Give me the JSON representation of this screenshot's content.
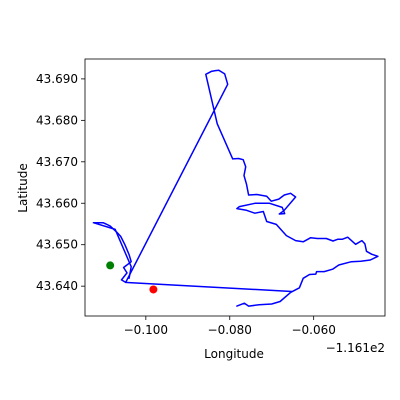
{
  "chart_data": {
    "type": "line",
    "xlabel": "Longitude",
    "ylabel": "Latitude",
    "x_offset_label": "−1.161e2",
    "x_offset": -116.1,
    "xlim": [
      -0.1145,
      -0.043
    ],
    "ylim": [
      43.6328,
      43.6948
    ],
    "x_ticks": [
      -0.1,
      -0.08,
      -0.06
    ],
    "x_tick_labels": [
      "−0.100",
      "−0.080",
      "−0.060"
    ],
    "y_ticks": [
      43.64,
      43.65,
      43.66,
      43.67,
      43.68,
      43.69
    ],
    "y_tick_labels": [
      "43.640",
      "43.650",
      "43.660",
      "43.670",
      "43.680",
      "43.690"
    ],
    "grid": false,
    "series": [
      {
        "kind": "line",
        "color": "#0000ff",
        "points": [
          [
            -0.0652,
            43.6387
          ],
          [
            -0.1048,
            43.6409
          ],
          [
            -0.0805,
            43.6887
          ],
          [
            -0.0812,
            43.6912
          ],
          [
            -0.0826,
            43.6921
          ],
          [
            -0.0834,
            43.692
          ],
          [
            -0.0844,
            43.6918
          ],
          [
            -0.0857,
            43.6911
          ],
          [
            -0.083,
            43.6792
          ],
          [
            -0.0793,
            43.6707
          ],
          [
            -0.0779,
            43.6708
          ],
          [
            -0.0768,
            43.6705
          ],
          [
            -0.0762,
            43.6688
          ],
          [
            -0.0766,
            43.6667
          ],
          [
            -0.076,
            43.6646
          ],
          [
            -0.0755,
            43.662
          ],
          [
            -0.0735,
            43.6621
          ],
          [
            -0.0712,
            43.6617
          ],
          [
            -0.0701,
            43.6605
          ],
          [
            -0.0683,
            43.661
          ],
          [
            -0.067,
            43.662
          ],
          [
            -0.0655,
            43.6624
          ],
          [
            -0.0643,
            43.6615
          ],
          [
            -0.0671,
            43.6582
          ],
          [
            -0.0682,
            43.6574
          ],
          [
            -0.0669,
            43.6575
          ],
          [
            -0.0675,
            43.659
          ],
          [
            -0.0705,
            43.66
          ],
          [
            -0.074,
            43.66
          ],
          [
            -0.0777,
            43.6592
          ],
          [
            -0.0783,
            43.6587
          ],
          [
            -0.076,
            43.6583
          ],
          [
            -0.074,
            43.6576
          ],
          [
            -0.072,
            43.658
          ],
          [
            -0.0712,
            43.6556
          ],
          [
            -0.0689,
            43.6549
          ],
          [
            -0.0665,
            43.6522
          ],
          [
            -0.0643,
            43.651
          ],
          [
            -0.0625,
            43.6507
          ],
          [
            -0.0607,
            43.6517
          ],
          [
            -0.0591,
            43.6515
          ],
          [
            -0.057,
            43.6515
          ],
          [
            -0.0554,
            43.6509
          ],
          [
            -0.0543,
            43.6513
          ],
          [
            -0.0532,
            43.6513
          ],
          [
            -0.0519,
            43.6518
          ],
          [
            -0.05,
            43.6501
          ],
          [
            -0.0485,
            43.651
          ],
          [
            -0.0478,
            43.6502
          ],
          [
            -0.0474,
            43.6484
          ],
          [
            -0.0462,
            43.6477
          ],
          [
            -0.0447,
            43.6472
          ],
          [
            -0.0465,
            43.6463
          ],
          [
            -0.0488,
            43.646
          ],
          [
            -0.051,
            43.6459
          ],
          [
            -0.054,
            43.6451
          ],
          [
            -0.0555,
            43.6441
          ],
          [
            -0.0575,
            43.6435
          ],
          [
            -0.0593,
            43.6435
          ],
          [
            -0.0595,
            43.6429
          ],
          [
            -0.061,
            43.6428
          ],
          [
            -0.0625,
            43.6419
          ],
          [
            -0.0634,
            43.6396
          ],
          [
            -0.0655,
            43.6385
          ],
          [
            -0.068,
            43.6363
          ],
          [
            -0.07,
            43.6357
          ],
          [
            -0.073,
            43.6355
          ],
          [
            -0.0755,
            43.6352
          ],
          [
            -0.0765,
            43.6359
          ],
          [
            -0.0783,
            43.6352
          ]
        ]
      },
      {
        "kind": "line",
        "color": "#0000ff",
        "points": [
          [
            -0.1048,
            43.6409
          ],
          [
            -0.1058,
            43.6415
          ],
          [
            -0.1045,
            43.6432
          ],
          [
            -0.1053,
            43.6445
          ],
          [
            -0.1035,
            43.6459
          ],
          [
            -0.104,
            43.6476
          ],
          [
            -0.105,
            43.65
          ],
          [
            -0.106,
            43.652
          ],
          [
            -0.107,
            43.6531
          ],
          [
            -0.1085,
            43.6545
          ],
          [
            -0.1095,
            43.655
          ],
          [
            -0.1102,
            43.6553
          ],
          [
            -0.1125,
            43.6553
          ],
          [
            -0.1073,
            43.6537
          ],
          [
            -0.1035,
            43.6447
          ],
          [
            -0.104,
            43.6419
          ]
        ]
      },
      {
        "kind": "point",
        "color": "#008000",
        "points": [
          [
            -0.1085,
            43.645
          ]
        ]
      },
      {
        "kind": "point",
        "color": "#ff0000",
        "points": [
          [
            -0.0982,
            43.6392
          ]
        ]
      }
    ]
  }
}
